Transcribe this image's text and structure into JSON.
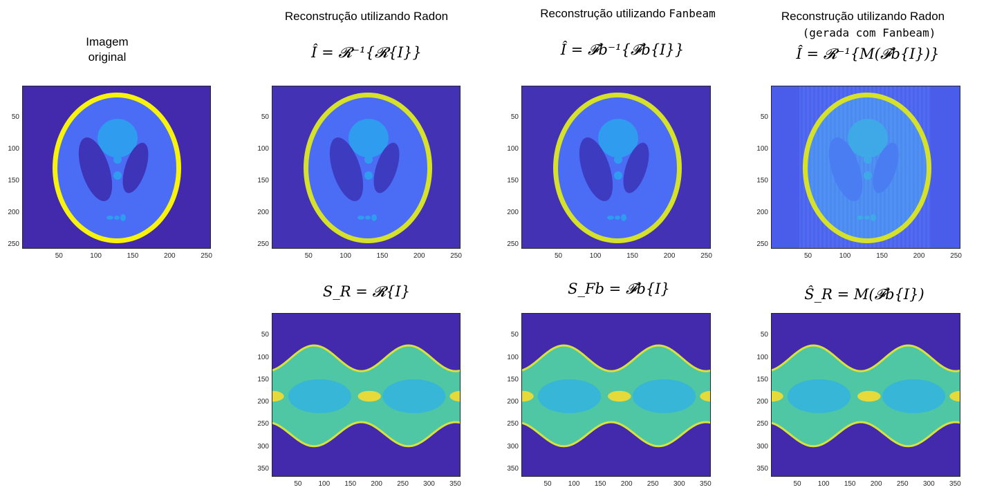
{
  "titles": {
    "original": [
      "Imagem",
      "original"
    ],
    "radon": "Reconstrução utilizando Radon",
    "fanbeam_prefix": "Reconstrução utilizando ",
    "fanbeam_word": "Fanbeam",
    "mixed_line1": "Reconstrução utilizando Radon",
    "mixed_line2": "(gerada com Fanbeam)"
  },
  "formulas": {
    "recon_radon": "Î = 𝓡⁻¹{𝓡{I}}",
    "recon_fanbeam": "Î = 𝓕b⁻¹{𝓕b{I}}",
    "recon_mixed": "Î = 𝓡⁻¹{M(𝓕b{I})}",
    "sino_radon": "S_R = 𝓡{I}",
    "sino_fanbeam": "S_Fb = 𝓕b{I}",
    "sino_mixed": "Ŝ_R = M(𝓕b{I})"
  },
  "axes": {
    "image_y_ticks": [
      "50",
      "100",
      "150",
      "200",
      "250"
    ],
    "image_x_ticks": [
      "50",
      "100",
      "150",
      "200",
      "250"
    ],
    "sino_y_ticks": [
      "50",
      "100",
      "150",
      "200",
      "250",
      "300",
      "350"
    ],
    "sino_x_ticks": [
      "50",
      "100",
      "150",
      "200",
      "250",
      "300",
      "350"
    ]
  },
  "colors": {
    "background": "#4329ab",
    "body": "#4b6cf5",
    "dark": "#3d34b8",
    "light": "#2f9cf0",
    "rim": "#f8f30d",
    "sino_green": "#4fc7a4",
    "sino_yellow": "#e6d93a"
  }
}
